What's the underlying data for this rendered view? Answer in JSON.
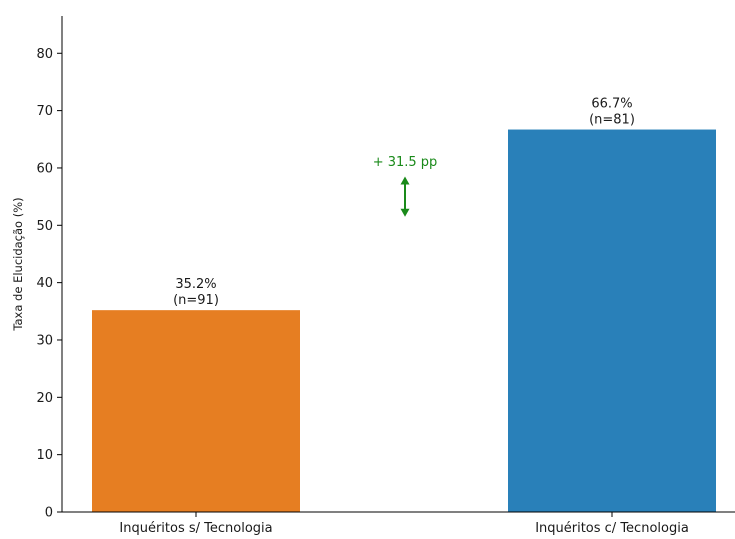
{
  "chart_data": {
    "type": "bar",
    "categories": [
      "Inquéritos s/ Tecnologia",
      "Inquéritos c/ Tecnologia"
    ],
    "values": [
      35.2,
      66.7
    ],
    "data_labels": [
      [
        "35.2%",
        "(n=91)"
      ],
      [
        "66.7%",
        "(n=81)"
      ]
    ],
    "colors": [
      "#e67e22",
      "#2980b9"
    ],
    "title": "",
    "xlabel": "",
    "ylabel": "Taxa de Elucidação (%)",
    "ylim": [
      0,
      86.5
    ],
    "yticks": [
      0,
      10,
      20,
      30,
      40,
      50,
      60,
      70,
      80
    ],
    "annotation": {
      "text": "+ 31.5 pp",
      "color": "#1a8a1a",
      "arrow_from": 51.5,
      "arrow_to": 58.5
    },
    "grid": false,
    "legend": "none"
  }
}
